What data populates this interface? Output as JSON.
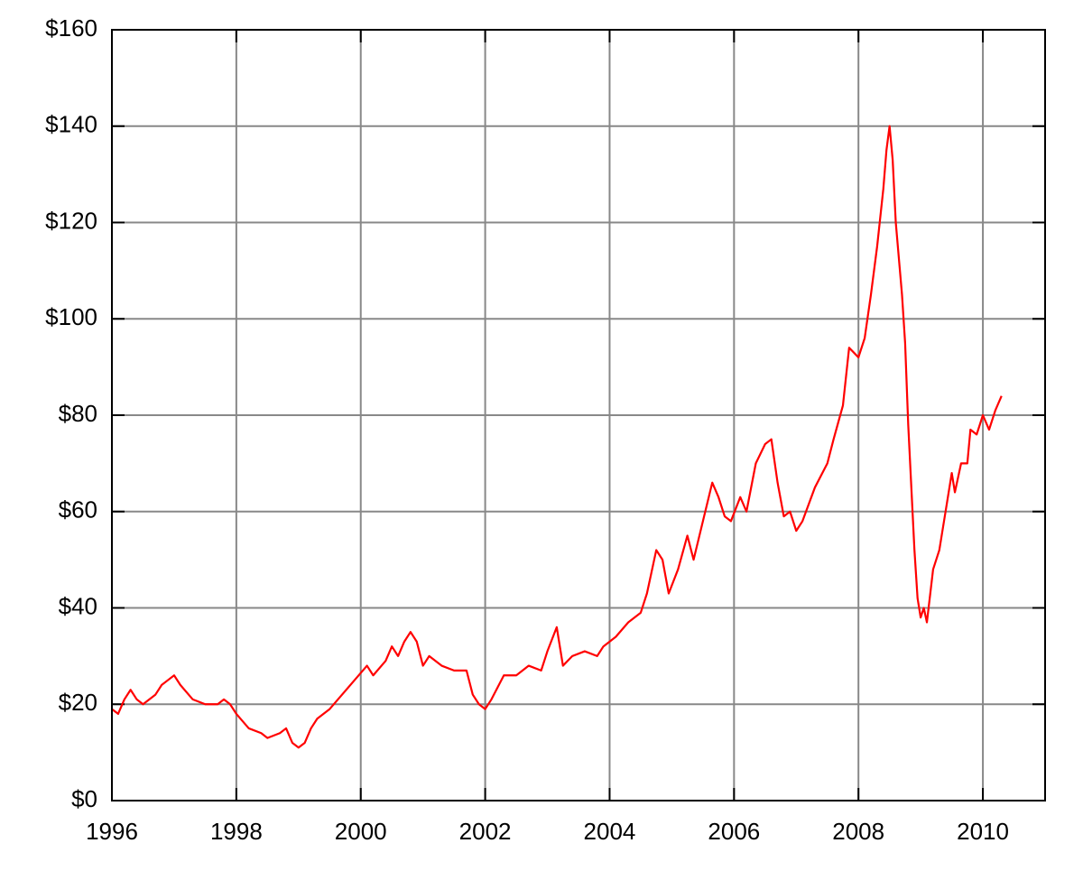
{
  "chart_data": {
    "type": "line",
    "xlim": [
      1996,
      2011
    ],
    "xticks": [
      1996,
      1998,
      2000,
      2002,
      2004,
      2006,
      2008,
      2010
    ],
    "ylim": [
      0,
      160
    ],
    "yticks": [
      {
        "value": 0,
        "label": "$0"
      },
      {
        "value": 20,
        "label": "$20"
      },
      {
        "value": 40,
        "label": "$40"
      },
      {
        "value": 60,
        "label": "$60"
      },
      {
        "value": 80,
        "label": "$80"
      },
      {
        "value": 100,
        "label": "$100"
      },
      {
        "value": 120,
        "label": "$120"
      },
      {
        "value": 140,
        "label": "$140"
      },
      {
        "value": 160,
        "label": "$160"
      }
    ],
    "grid": true,
    "series": [
      {
        "color": "#ff0000",
        "x": [
          1996.0,
          1996.1,
          1996.2,
          1996.3,
          1996.4,
          1996.5,
          1996.7,
          1996.8,
          1996.9,
          1997.0,
          1997.1,
          1997.3,
          1997.5,
          1997.7,
          1997.8,
          1997.9,
          1998.0,
          1998.2,
          1998.4,
          1998.5,
          1998.7,
          1998.8,
          1998.9,
          1999.0,
          1999.1,
          1999.2,
          1999.3,
          1999.5,
          1999.7,
          1999.9,
          2000.1,
          2000.2,
          2000.4,
          2000.5,
          2000.6,
          2000.7,
          2000.8,
          2000.9,
          2001.0,
          2001.1,
          2001.3,
          2001.5,
          2001.7,
          2001.8,
          2001.9,
          2002.0,
          2002.1,
          2002.3,
          2002.5,
          2002.7,
          2002.9,
          2003.0,
          2003.15,
          2003.25,
          2003.4,
          2003.6,
          2003.8,
          2003.9,
          2004.1,
          2004.3,
          2004.5,
          2004.6,
          2004.75,
          2004.85,
          2004.95,
          2005.1,
          2005.25,
          2005.35,
          2005.5,
          2005.65,
          2005.75,
          2005.85,
          2005.95,
          2006.1,
          2006.2,
          2006.35,
          2006.5,
          2006.6,
          2006.7,
          2006.8,
          2006.9,
          2007.0,
          2007.1,
          2007.3,
          2007.5,
          2007.6,
          2007.75,
          2007.85,
          2008.0,
          2008.1,
          2008.2,
          2008.3,
          2008.4,
          2008.45,
          2008.5,
          2008.55,
          2008.6,
          2008.7,
          2008.75,
          2008.8,
          2008.85,
          2008.9,
          2008.95,
          2009.0,
          2009.05,
          2009.1,
          2009.2,
          2009.3,
          2009.4,
          2009.5,
          2009.55,
          2009.65,
          2009.75,
          2009.8,
          2009.9,
          2010.0,
          2010.1,
          2010.2,
          2010.3
        ],
        "values": [
          19,
          18,
          21,
          23,
          21,
          20,
          22,
          24,
          25,
          26,
          24,
          21,
          20,
          20,
          21,
          20,
          18,
          15,
          14,
          13,
          14,
          15,
          12,
          11,
          12,
          15,
          17,
          19,
          22,
          25,
          28,
          26,
          29,
          32,
          30,
          33,
          35,
          33,
          28,
          30,
          28,
          27,
          27,
          22,
          20,
          19,
          21,
          26,
          26,
          28,
          27,
          31,
          36,
          28,
          30,
          31,
          30,
          32,
          34,
          37,
          39,
          43,
          52,
          50,
          43,
          48,
          55,
          50,
          58,
          66,
          63,
          59,
          58,
          63,
          60,
          70,
          74,
          75,
          66,
          59,
          60,
          56,
          58,
          65,
          70,
          75,
          82,
          94,
          92,
          96,
          105,
          115,
          127,
          135,
          140,
          133,
          120,
          105,
          95,
          78,
          65,
          52,
          42,
          38,
          40,
          37,
          48,
          52,
          60,
          68,
          64,
          70,
          70,
          77,
          76,
          80,
          77,
          81,
          84
        ]
      }
    ]
  }
}
